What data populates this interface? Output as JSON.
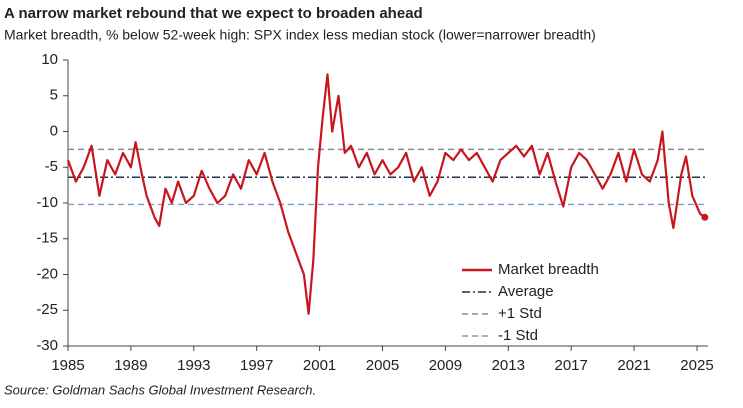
{
  "chart_data": {
    "type": "line",
    "title": "A narrow market rebound that we expect to broaden ahead",
    "subtitle": "Market breadth, % below 52-week high: SPX index less median stock (lower=narrower breadth)",
    "source": "Source: Goldman Sachs Global Investment Research.",
    "x": [
      1985.0,
      1985.5,
      1986.0,
      1986.5,
      1987.0,
      1987.5,
      1988.0,
      1988.5,
      1989.0,
      1989.3,
      1989.7,
      1990.0,
      1990.5,
      1990.8,
      1991.2,
      1991.6,
      1992.0,
      1992.5,
      1993.0,
      1993.5,
      1994.0,
      1994.5,
      1995.0,
      1995.5,
      1996.0,
      1996.5,
      1997.0,
      1997.5,
      1998.0,
      1998.5,
      1999.0,
      1999.5,
      2000.0,
      2000.3,
      2000.6,
      2000.9,
      2001.2,
      2001.5,
      2001.8,
      2002.2,
      2002.6,
      2003.0,
      2003.5,
      2004.0,
      2004.5,
      2005.0,
      2005.5,
      2006.0,
      2006.5,
      2007.0,
      2007.5,
      2008.0,
      2008.5,
      2009.0,
      2009.5,
      2010.0,
      2010.5,
      2011.0,
      2011.5,
      2012.0,
      2012.5,
      2013.0,
      2013.5,
      2014.0,
      2014.5,
      2015.0,
      2015.5,
      2016.0,
      2016.5,
      2017.0,
      2017.5,
      2018.0,
      2018.5,
      2019.0,
      2019.5,
      2020.0,
      2020.5,
      2021.0,
      2021.5,
      2022.0,
      2022.5,
      2022.8,
      2023.2,
      2023.5,
      2024.0,
      2024.3,
      2024.7,
      2025.2,
      2025.5
    ],
    "series": [
      {
        "name": "Market breadth",
        "color": "#c8161e",
        "values": [
          -4,
          -7,
          -5,
          -2,
          -9,
          -4,
          -6,
          -3,
          -5,
          -1.5,
          -6,
          -9,
          -12,
          -13.2,
          -8,
          -10,
          -7,
          -10,
          -9,
          -5.5,
          -8,
          -10,
          -9,
          -6,
          -8,
          -4,
          -6,
          -3,
          -7,
          -10,
          -14,
          -17,
          -20,
          -25.5,
          -18,
          -5,
          2,
          8,
          0,
          5,
          -3,
          -2,
          -5,
          -3,
          -6,
          -4,
          -6,
          -5,
          -3,
          -7,
          -5,
          -9,
          -7,
          -3,
          -4,
          -2.5,
          -4,
          -3,
          -5,
          -7,
          -4,
          -3,
          -2,
          -3.5,
          -2,
          -6,
          -3,
          -7,
          -10.5,
          -5,
          -3,
          -4,
          -6,
          -8,
          -6,
          -3,
          -7,
          -2.5,
          -6,
          -7,
          -4,
          0,
          -10,
          -13.5,
          -6,
          -3.5,
          -9,
          -11.5,
          -12
        ]
      }
    ],
    "reference_lines": [
      {
        "name": "Average",
        "value": -6.4,
        "color": "#1f3550",
        "dash": "8,3,2,3"
      },
      {
        "name": "+1 Std",
        "value": -2.5,
        "color": "#8a8a8a",
        "dash": "6,4"
      },
      {
        "name": "-1 Std",
        "value": -10.2,
        "color": "#7a9cc8",
        "dash": "6,4"
      }
    ],
    "xlim": [
      1985,
      2025.7
    ],
    "ylim": [
      -30,
      10
    ],
    "xticks": [
      1985,
      1989,
      1993,
      1997,
      2001,
      2005,
      2009,
      2013,
      2017,
      2021,
      2025
    ],
    "yticks": [
      -30,
      -25,
      -20,
      -15,
      -10,
      -5,
      0,
      5,
      10
    ],
    "legend": "lower-right"
  }
}
